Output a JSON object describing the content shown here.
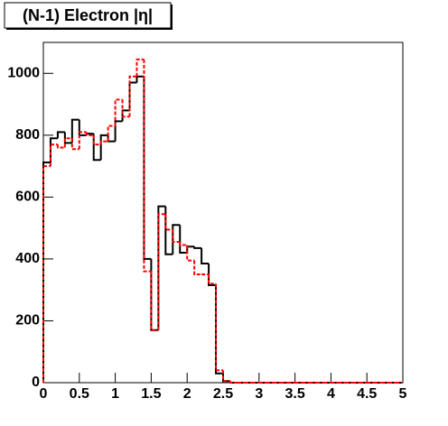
{
  "chart_data": {
    "type": "histogram",
    "title": "(N-1) Electron |η|",
    "bins": [
      0,
      0.1,
      0.2,
      0.3,
      0.4,
      0.5,
      0.6,
      0.7,
      0.8,
      0.9,
      1,
      1.1,
      1.2,
      1.3,
      1.4,
      1.5,
      1.6,
      1.7,
      1.8,
      1.9,
      2,
      2.1,
      2.2,
      2.3,
      2.4,
      2.5,
      2.6,
      2.7,
      2.8,
      2.9,
      3,
      3.1,
      3.2,
      3.3,
      3.4,
      3.5,
      3.6,
      3.7,
      3.8,
      3.9,
      4,
      4.1,
      4.2,
      4.3,
      4.4,
      4.5,
      4.6,
      4.7,
      4.8,
      4.9,
      5
    ],
    "series": [
      {
        "color": "#000000",
        "values": [
          712,
          790,
          810,
          775,
          850,
          800,
          805,
          720,
          800,
          780,
          845,
          880,
          970,
          990,
          400,
          170,
          570,
          415,
          510,
          420,
          440,
          435,
          385,
          315,
          30,
          5,
          0,
          0,
          0,
          0,
          0,
          0,
          0,
          0,
          0,
          0,
          0,
          0,
          0,
          0,
          0,
          0,
          0,
          0,
          0,
          0,
          0,
          0,
          0,
          0
        ]
      },
      {
        "color": "#ff0000",
        "values": [
          700,
          770,
          760,
          790,
          755,
          810,
          800,
          770,
          780,
          830,
          915,
          860,
          990,
          1045,
          360,
          170,
          545,
          495,
          455,
          445,
          395,
          350,
          350,
          320,
          40,
          5,
          0,
          0,
          0,
          0,
          0,
          0,
          0,
          0,
          0,
          0,
          0,
          0,
          0,
          0,
          0,
          0,
          0,
          0,
          0,
          0,
          0,
          0,
          0,
          0
        ]
      }
    ],
    "xlim": [
      0,
      5
    ],
    "xticks": [
      0,
      0.5,
      1,
      1.5,
      2,
      2.5,
      3,
      3.5,
      4,
      4.5,
      5
    ],
    "ylim": [
      0,
      1100
    ],
    "yticks": [
      0,
      200,
      400,
      600,
      800,
      1000
    ]
  }
}
